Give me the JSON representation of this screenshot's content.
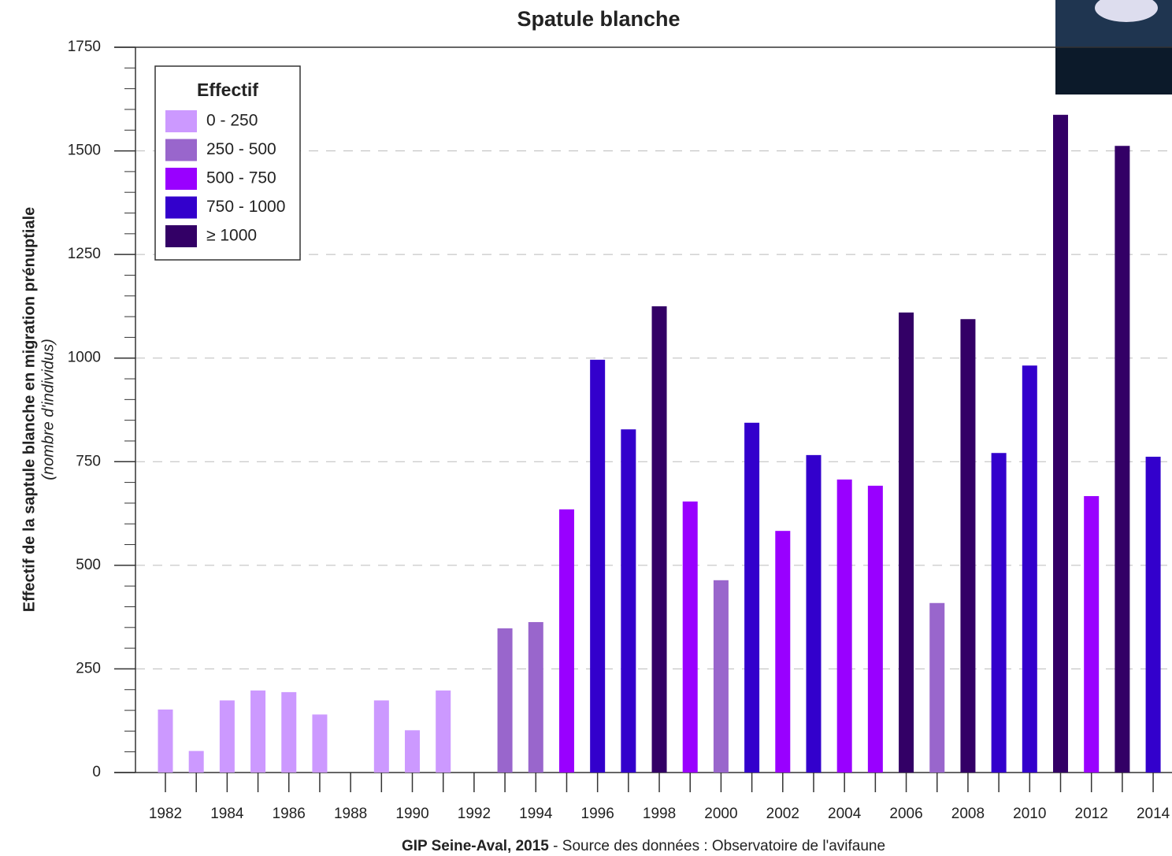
{
  "chart_data": {
    "type": "bar",
    "title": "Spatule blanche",
    "y_label": "Effectif de la saptule blanche en migration prénuptiale",
    "y_sublabel": "(nombre d'individus)",
    "footer_bold": "GIP Seine-Aval, 2015",
    "footer": " - Source des données : Observatoire de l'avifaune",
    "legend": {
      "title": "Effectif",
      "entries": [
        {
          "label": "0 - 250",
          "color": "#cc99ff"
        },
        {
          "label": "250 - 500",
          "color": "#9966cc"
        },
        {
          "label": "500 - 750",
          "color": "#9900ff"
        },
        {
          "label": "750 - 1000",
          "color": "#3300cc"
        },
        {
          "label": "≥ 1000",
          "color": "#330066"
        }
      ]
    },
    "categories": [
      "1982",
      null,
      "1984",
      null,
      "1986",
      null,
      "1988",
      null,
      "1990",
      null,
      "1992",
      null,
      "1994",
      null,
      "1996",
      null,
      "1998",
      null,
      "2000",
      null,
      "2002",
      null,
      "2004",
      null,
      "2006",
      null,
      "2008",
      null,
      "2010",
      null,
      "2012",
      null,
      "2014"
    ],
    "values": [
      152,
      52,
      174,
      198,
      194,
      140,
      0,
      174,
      102,
      198,
      0,
      348,
      363,
      635,
      996,
      828,
      1125,
      654,
      464,
      844,
      583,
      766,
      707,
      692,
      1110,
      409,
      1094,
      771,
      982,
      1587,
      667,
      1512,
      762
    ],
    "colors": [
      "#cc99ff",
      "#cc99ff",
      "#cc99ff",
      "#cc99ff",
      "#cc99ff",
      "#cc99ff",
      "#cc99ff",
      "#cc99ff",
      "#cc99ff",
      "#cc99ff",
      "#cc99ff",
      "#9966cc",
      "#9966cc",
      "#9900ff",
      "#3300cc",
      "#3300cc",
      "#330066",
      "#9900ff",
      "#9966cc",
      "#3300cc",
      "#9900ff",
      "#3300cc",
      "#9900ff",
      "#9900ff",
      "#330066",
      "#9966cc",
      "#330066",
      "#3300cc",
      "#3300cc",
      "#330066",
      "#9900ff",
      "#330066",
      "#3300cc"
    ],
    "ylim": [
      0,
      1750
    ],
    "yticks": [
      0,
      250,
      500,
      750,
      1000,
      1250,
      1500,
      1750
    ],
    "grid": true
  }
}
